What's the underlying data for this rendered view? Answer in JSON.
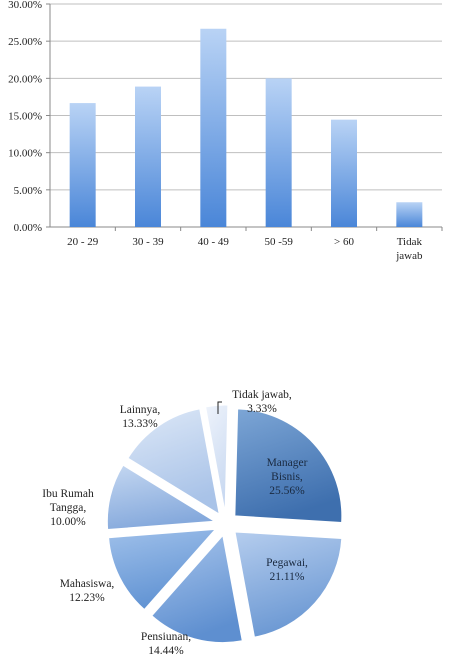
{
  "chart_data": [
    {
      "type": "bar",
      "categories": [
        "20 - 29",
        "30 - 39",
        "40 - 49",
        "50 -59",
        "> 60",
        "Tidak jawab"
      ],
      "values": [
        16.67,
        18.89,
        26.67,
        20.0,
        14.44,
        3.33
      ],
      "yticks": [
        "0.00%",
        "5.00%",
        "10.00%",
        "15.00%",
        "20.00%",
        "25.00%",
        "30.00%"
      ],
      "ylim": [
        0,
        30
      ],
      "grid": true,
      "colors": {
        "bar_light": "#b9d3f5",
        "bar_dark": "#4a86d8",
        "grid": "#bfbfbf"
      }
    },
    {
      "type": "pie",
      "exploded": true,
      "slices": [
        {
          "name": "Manager Bisnis",
          "value": 25.56,
          "label": "25.56%",
          "color_light": "#7da6d6",
          "color_dark": "#3e6fae"
        },
        {
          "name": "Pegawai",
          "value": 21.11,
          "label": "21.11%",
          "color_light": "#b5cdee",
          "color_dark": "#6b98d3"
        },
        {
          "name": "Pensiunan",
          "value": 14.44,
          "label": "14.44%",
          "color_light": "#a8c5ec",
          "color_dark": "#5e8fd0"
        },
        {
          "name": "Mahasiswa",
          "value": 12.23,
          "label": "12.23%",
          "color_light": "#9fc0ea",
          "color_dark": "#6193d3"
        },
        {
          "name": "Ibu Rumah Tangga",
          "value": 10.0,
          "label": "10.00%",
          "color_light": "#c4d7f1",
          "color_dark": "#85a9dc"
        },
        {
          "name": "Lainnya",
          "value": 13.33,
          "label": "13.33%",
          "color_light": "#dde8f7",
          "color_dark": "#a9c3e8"
        },
        {
          "name": "Tidak jawab",
          "value": 3.33,
          "label": "3.33%",
          "color_light": "#eef3fb",
          "color_dark": "#c9d9f1"
        }
      ]
    }
  ]
}
